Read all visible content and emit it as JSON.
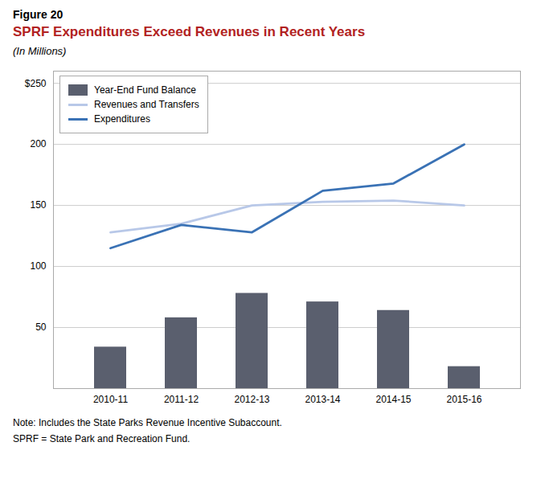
{
  "chart_data": {
    "type": "bar",
    "figure_label": "Figure 20",
    "title": "SPRF Expenditures Exceed Revenues in Recent Years",
    "subtitle": "(In Millions)",
    "annotations": [
      "Note: Includes the State Parks Revenue Incentive Subaccount.",
      "SPRF = State Park and Recreation Fund."
    ],
    "categories": [
      "2010-11",
      "2011-12",
      "2012-13",
      "2013-14",
      "2014-15",
      "2015-16"
    ],
    "series": [
      {
        "name": "Year-End Fund Balance",
        "type": "bar",
        "color": "#5a5f6e",
        "values": [
          34,
          58,
          78,
          71,
          64,
          18
        ]
      },
      {
        "name": "Revenues and Transfers",
        "type": "line",
        "color": "#b8c8e8",
        "values": [
          128,
          135,
          150,
          153,
          154,
          150
        ]
      },
      {
        "name": "Expenditures",
        "type": "line",
        "color": "#3a72b5",
        "values": [
          115,
          134,
          128,
          162,
          168,
          200
        ]
      }
    ],
    "ylim": [
      0,
      260
    ],
    "yticks": [
      {
        "value": 0,
        "label": ""
      },
      50,
      100,
      150,
      200,
      {
        "value": 250,
        "label": "$250"
      }
    ],
    "grid": true,
    "legend": "upper left"
  }
}
